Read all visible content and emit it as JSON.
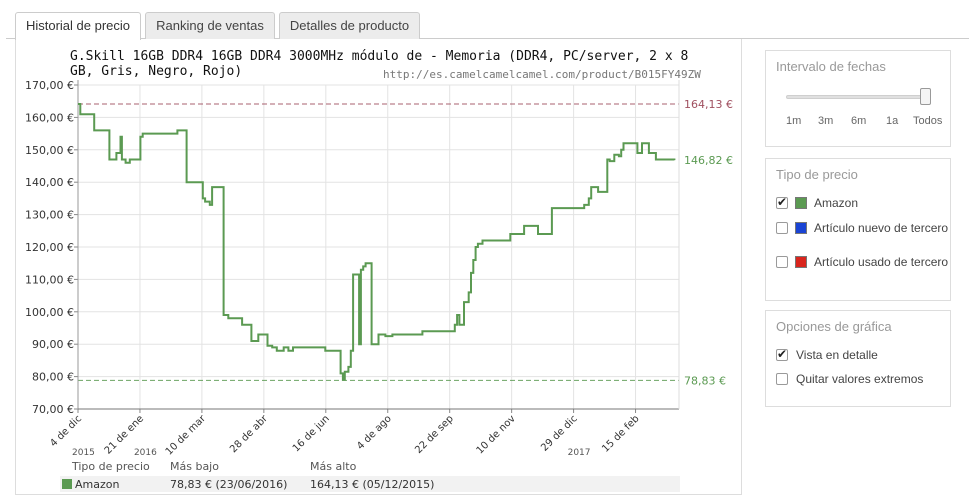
{
  "tabs": [
    {
      "label": "Historial de precio",
      "active": true
    },
    {
      "label": "Ranking de ventas",
      "active": false
    },
    {
      "label": "Detalles de producto",
      "active": false
    }
  ],
  "product": {
    "title": "G.Skill 16GB DDR4 16GB DDR4 3000MHz módulo de - Memoria (DDR4, PC/server, 2 x 8 GB, Gris, Negro, Rojo)",
    "url": "http://es.camelcamelcamel.com/product/B015FY49ZW"
  },
  "chart_data": {
    "type": "line",
    "title": "",
    "xlabel": "",
    "ylabel": "",
    "ylim": [
      70,
      170
    ],
    "y_ticks": [
      "70,00 €",
      "80,00 €",
      "90,00 €",
      "100,00 €",
      "110,00 €",
      "120,00 €",
      "130,00 €",
      "140,00 €",
      "150,00 €",
      "160,00 €",
      "170,00 €"
    ],
    "x_ticks": [
      "4 de dic",
      "21 de ene",
      "10 de mar",
      "28 de abr",
      "16 de jun",
      "4 de ago",
      "22 de sep",
      "10 de nov",
      "29 de dic",
      "15 de feb"
    ],
    "year_labels": [
      {
        "label": "2015",
        "at": "4 de dic"
      },
      {
        "label": "2016",
        "at": "21 de ene"
      },
      {
        "label": "2017",
        "at": "29 de dic"
      }
    ],
    "grid": true,
    "reference_lines": [
      {
        "label": "164,13 €",
        "value": 164.13,
        "color": "#a05060"
      },
      {
        "label": "146,82 €",
        "value": 146.82,
        "color": "#5b9a52"
      },
      {
        "label": "78,83 €",
        "value": 78.83,
        "color": "#5b9a52"
      }
    ],
    "series": [
      {
        "name": "Amazon",
        "color": "#5b9a52",
        "step": true,
        "points": [
          [
            0,
            164.13
          ],
          [
            0.5,
            161
          ],
          [
            3,
            161
          ],
          [
            3.5,
            156
          ],
          [
            6.5,
            156
          ],
          [
            6.8,
            147
          ],
          [
            8,
            147
          ],
          [
            8.3,
            149
          ],
          [
            9,
            149
          ],
          [
            9.2,
            154
          ],
          [
            9.5,
            147
          ],
          [
            10,
            147
          ],
          [
            10.3,
            146
          ],
          [
            11,
            146
          ],
          [
            11.2,
            147
          ],
          [
            13,
            147
          ],
          [
            13.5,
            154
          ],
          [
            14,
            155
          ],
          [
            21,
            155
          ],
          [
            21.5,
            156
          ],
          [
            23,
            156
          ],
          [
            23.5,
            140
          ],
          [
            26.5,
            140
          ],
          [
            27,
            135
          ],
          [
            27.5,
            134
          ],
          [
            28.5,
            133
          ],
          [
            29,
            138.5
          ],
          [
            30,
            138.5
          ],
          [
            31.5,
            99
          ],
          [
            32.5,
            98
          ],
          [
            35,
            98
          ],
          [
            35.5,
            96
          ],
          [
            37,
            96
          ],
          [
            37.5,
            91
          ],
          [
            38.5,
            91
          ],
          [
            39,
            93
          ],
          [
            40.5,
            93
          ],
          [
            41,
            89.5
          ],
          [
            42,
            89
          ],
          [
            43,
            88
          ],
          [
            44,
            88
          ],
          [
            44.5,
            89
          ],
          [
            45.5,
            88
          ],
          [
            46.5,
            89
          ],
          [
            53,
            89
          ],
          [
            53.5,
            88
          ],
          [
            56.5,
            88
          ],
          [
            56.8,
            81
          ],
          [
            57.3,
            79
          ],
          [
            57.7,
            81.5
          ],
          [
            58.5,
            83
          ],
          [
            59,
            88
          ],
          [
            59.5,
            111.5
          ],
          [
            60.5,
            111.5
          ],
          [
            60.8,
            90
          ],
          [
            61.2,
            113
          ],
          [
            61.7,
            114
          ],
          [
            62.2,
            115
          ],
          [
            63,
            115
          ],
          [
            63.5,
            90
          ],
          [
            64.5,
            90
          ],
          [
            65,
            93
          ],
          [
            65.5,
            93
          ],
          [
            66.5,
            92.5
          ],
          [
            67.5,
            92.5
          ],
          [
            68,
            93
          ],
          [
            74,
            93
          ],
          [
            74.5,
            94
          ],
          [
            81,
            94
          ],
          [
            81.5,
            96
          ],
          [
            82,
            99
          ],
          [
            82.5,
            96
          ],
          [
            83.5,
            103
          ],
          [
            84.5,
            106
          ],
          [
            85,
            112
          ],
          [
            85.5,
            116
          ],
          [
            86,
            120
          ],
          [
            86.5,
            121
          ],
          [
            87.5,
            122
          ],
          [
            93,
            122
          ],
          [
            93.5,
            124
          ],
          [
            96,
            124
          ],
          [
            96.5,
            126.5
          ],
          [
            99,
            126.5
          ],
          [
            99.5,
            124
          ],
          [
            102,
            124
          ],
          [
            102.5,
            132
          ],
          [
            109,
            132
          ],
          [
            109.5,
            133
          ],
          [
            110.5,
            135
          ],
          [
            111,
            138.5
          ],
          [
            112,
            138.5
          ],
          [
            112.5,
            137
          ],
          [
            114,
            137
          ],
          [
            114.5,
            147
          ],
          [
            115,
            146.5
          ],
          [
            116,
            148.5
          ],
          [
            117,
            148
          ],
          [
            117.5,
            150
          ],
          [
            118,
            152
          ],
          [
            120.5,
            152
          ],
          [
            121,
            149
          ],
          [
            122,
            152
          ],
          [
            123,
            152
          ],
          [
            123.5,
            149
          ],
          [
            124.5,
            149
          ],
          [
            125,
            147
          ],
          [
            128,
            147
          ],
          [
            129,
            146.82
          ]
        ]
      }
    ]
  },
  "legend_table": {
    "headers": [
      "Tipo de precio",
      "Más bajo",
      "Más alto"
    ],
    "rows": [
      {
        "type": "Amazon",
        "low": "78,83 € (23/06/2016)",
        "high": "164,13 € (05/12/2015)",
        "color": "#5b9a52"
      }
    ]
  },
  "panels": {
    "date_range": {
      "title": "Intervalo de fechas",
      "options": [
        "1m",
        "3m",
        "6m",
        "1a",
        "Todos"
      ],
      "selected": "Todos"
    },
    "price_type": {
      "title": "Tipo de precio",
      "options": [
        {
          "label": "Amazon",
          "checked": true,
          "color": "#5b9a52"
        },
        {
          "label": "Artículo nuevo de tercero",
          "checked": false,
          "color": "#1a44d4"
        },
        {
          "label": "Artículo usado de tercero",
          "checked": false,
          "color": "#d9251d"
        }
      ]
    },
    "graph_options": {
      "title": "Opciones de gráfica",
      "options": [
        {
          "label": "Vista en detalle",
          "checked": true
        },
        {
          "label": "Quitar valores extremos",
          "checked": false
        }
      ]
    }
  }
}
